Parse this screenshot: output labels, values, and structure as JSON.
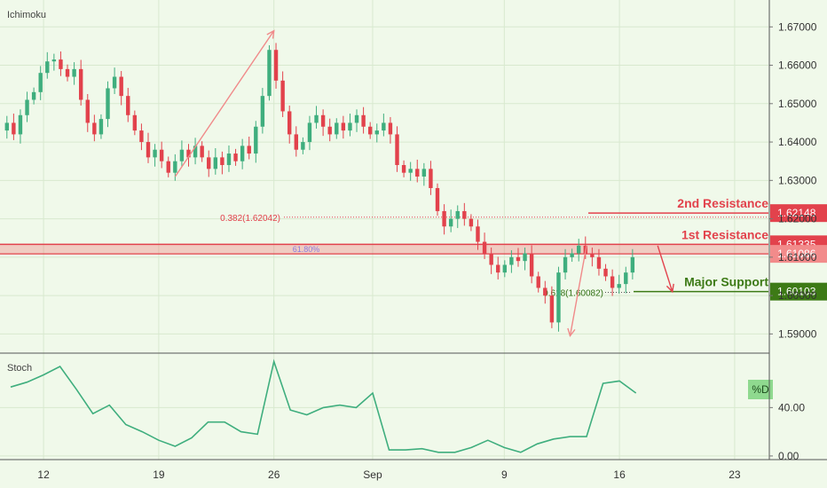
{
  "chart_data": {
    "type": "candlestick",
    "indicator_label": "Ichimoku",
    "price_axis": {
      "min": 1.585,
      "max": 1.677,
      "ticks": [
        "1.67000",
        "1.66000",
        "1.65000",
        "1.64000",
        "1.63000",
        "1.62000",
        "1.61000",
        "1.60000",
        "1.59000"
      ]
    },
    "x_axis": {
      "start": "2020-08-10",
      "end": "2020-09-25",
      "ticks": [
        {
          "date": "2020-08-12",
          "label": "12"
        },
        {
          "date": "2020-08-19",
          "label": "19"
        },
        {
          "date": "2020-08-26",
          "label": "26"
        },
        {
          "date": "2020-09-01",
          "label": "Sep"
        },
        {
          "date": "2020-09-09",
          "label": "9"
        },
        {
          "date": "2020-09-16",
          "label": "16"
        },
        {
          "date": "2020-09-23",
          "label": "23"
        }
      ]
    },
    "price_path": [
      [
        "2020-08-10",
        1.643
      ],
      [
        "2020-08-10",
        1.645
      ],
      [
        "2020-08-11",
        1.642
      ],
      [
        "2020-08-11",
        1.647
      ],
      [
        "2020-08-12",
        1.651
      ],
      [
        "2020-08-12",
        1.653
      ],
      [
        "2020-08-12",
        1.658
      ],
      [
        "2020-08-13",
        1.661
      ],
      [
        "2020-08-13",
        1.6615
      ],
      [
        "2020-08-13",
        1.659
      ],
      [
        "2020-08-14",
        1.657
      ],
      [
        "2020-08-14",
        1.659
      ],
      [
        "2020-08-14",
        1.651
      ],
      [
        "2020-08-15",
        1.645
      ],
      [
        "2020-08-15",
        1.642
      ],
      [
        "2020-08-16",
        1.646
      ],
      [
        "2020-08-16",
        1.654
      ],
      [
        "2020-08-17",
        1.657
      ],
      [
        "2020-08-17",
        1.652
      ],
      [
        "2020-08-17",
        1.647
      ],
      [
        "2020-08-18",
        1.643
      ],
      [
        "2020-08-18",
        1.64
      ],
      [
        "2020-08-18",
        1.636
      ],
      [
        "2020-08-19",
        1.638
      ],
      [
        "2020-08-19",
        1.635
      ],
      [
        "2020-08-20",
        1.632
      ],
      [
        "2020-08-20",
        1.635
      ],
      [
        "2020-08-21",
        1.638
      ],
      [
        "2020-08-21",
        1.636
      ],
      [
        "2020-08-22",
        1.639
      ],
      [
        "2020-08-22",
        1.636
      ],
      [
        "2020-08-23",
        1.633
      ],
      [
        "2020-08-23",
        1.636
      ],
      [
        "2020-08-24",
        1.634
      ],
      [
        "2020-08-24",
        1.637
      ],
      [
        "2020-08-25",
        1.635
      ],
      [
        "2020-08-25",
        1.639
      ],
      [
        "2020-08-25",
        1.637
      ],
      [
        "2020-08-26",
        1.644
      ],
      [
        "2020-08-26",
        1.652
      ],
      [
        "2020-08-26",
        1.664
      ],
      [
        "2020-08-27",
        1.656
      ],
      [
        "2020-08-27",
        1.648
      ],
      [
        "2020-08-28",
        1.642
      ],
      [
        "2020-08-28",
        1.638
      ],
      [
        "2020-08-29",
        1.64
      ],
      [
        "2020-08-29",
        1.645
      ],
      [
        "2020-08-30",
        1.647
      ],
      [
        "2020-08-30",
        1.644
      ],
      [
        "2020-08-31",
        1.642
      ],
      [
        "2020-08-31",
        1.645
      ],
      [
        "2020-09-01",
        1.643
      ],
      [
        "2020-09-01",
        1.645
      ],
      [
        "2020-09-01",
        1.647
      ],
      [
        "2020-09-02",
        1.644
      ],
      [
        "2020-09-02",
        1.642
      ],
      [
        "2020-09-03",
        1.643
      ],
      [
        "2020-09-03",
        1.645
      ],
      [
        "2020-09-03",
        1.642
      ],
      [
        "2020-09-04",
        1.634
      ],
      [
        "2020-09-04",
        1.632
      ],
      [
        "2020-09-05",
        1.633
      ],
      [
        "2020-09-05",
        1.631
      ],
      [
        "2020-09-06",
        1.633
      ],
      [
        "2020-09-06",
        1.628
      ],
      [
        "2020-09-06",
        1.622
      ],
      [
        "2020-09-07",
        1.618
      ],
      [
        "2020-09-07",
        1.62
      ],
      [
        "2020-09-08",
        1.622
      ],
      [
        "2020-09-08",
        1.62
      ],
      [
        "2020-09-09",
        1.618
      ],
      [
        "2020-09-09",
        1.614
      ],
      [
        "2020-09-10",
        1.611
      ],
      [
        "2020-09-10",
        1.608
      ],
      [
        "2020-09-10",
        1.606
      ],
      [
        "2020-09-11",
        1.608
      ],
      [
        "2020-09-11",
        1.61
      ],
      [
        "2020-09-12",
        1.609
      ],
      [
        "2020-09-12",
        1.611
      ],
      [
        "2020-09-13",
        1.605
      ],
      [
        "2020-09-13",
        1.602
      ],
      [
        "2020-09-13",
        1.6
      ],
      [
        "2020-09-14",
        1.593
      ],
      [
        "2020-09-14",
        1.606
      ],
      [
        "2020-09-14",
        1.61
      ],
      [
        "2020-09-15",
        1.611
      ],
      [
        "2020-09-15",
        1.613
      ],
      [
        "2020-09-15",
        1.611
      ],
      [
        "2020-09-15",
        1.61
      ],
      [
        "2020-09-16",
        1.607
      ],
      [
        "2020-09-16",
        1.605
      ],
      [
        "2020-09-16",
        1.602
      ],
      [
        "2020-09-16",
        1.603
      ],
      [
        "2020-09-17",
        1.606
      ],
      [
        "2020-09-17",
        1.61
      ]
    ],
    "fib_levels": [
      {
        "label": "0.382(1.62042)",
        "value": 1.62042
      },
      {
        "label": "61.80%",
        "value": 1.6121
      },
      {
        "label": "0.618(1.60082)",
        "value": 1.60082
      }
    ],
    "levels": [
      {
        "name": "2nd Resistance",
        "value": 1.62148,
        "price_label": "1.62148"
      },
      {
        "name": "1st Resistance",
        "value": 1.61335,
        "price_label": "1.61335",
        "zone_low": 1.61086,
        "zone_low_label": "1.61086"
      },
      {
        "name": "Major Support",
        "value": 1.60103,
        "price_label": "1.60103"
      }
    ],
    "trend_lines": [
      {
        "from": [
          "2020-08-20",
          1.631
        ],
        "to": [
          "2020-08-26",
          1.669
        ]
      },
      {
        "from": [
          "2020-09-14",
          1.613
        ],
        "to": [
          "2020-09-13",
          1.5895
        ]
      }
    ],
    "forecast_arrow": {
      "from": [
        "2020-09-18",
        1.613
      ],
      "to": [
        "2020-09-19",
        1.601
      ]
    },
    "stoch": {
      "label": "Stoch",
      "series_label": "%D",
      "range": [
        -3,
        85
      ],
      "ticks": [
        "40.00",
        "0.00"
      ],
      "x": [
        "2020-08-10",
        "2020-08-11",
        "2020-08-12",
        "2020-08-13",
        "2020-08-14",
        "2020-08-15",
        "2020-08-16",
        "2020-08-17",
        "2020-08-18",
        "2020-08-19",
        "2020-08-20",
        "2020-08-21",
        "2020-08-22",
        "2020-08-23",
        "2020-08-24",
        "2020-08-25",
        "2020-08-26",
        "2020-08-27",
        "2020-08-28",
        "2020-08-29",
        "2020-08-30",
        "2020-08-31",
        "2020-09-01",
        "2020-09-02",
        "2020-09-03",
        "2020-09-04",
        "2020-09-05",
        "2020-09-06",
        "2020-09-07",
        "2020-09-08",
        "2020-09-09",
        "2020-09-10",
        "2020-09-11",
        "2020-09-12",
        "2020-09-13",
        "2020-09-14",
        "2020-09-15",
        "2020-09-16",
        "2020-09-17"
      ],
      "values": [
        57,
        61,
        67,
        74,
        55,
        35,
        42,
        26,
        20,
        13,
        8,
        15,
        28,
        28,
        20,
        18,
        78,
        38,
        34,
        40,
        42,
        40,
        52,
        5,
        5,
        6,
        3,
        3,
        7,
        13,
        7,
        3,
        10,
        14,
        16,
        16,
        60,
        62,
        52
      ]
    }
  }
}
